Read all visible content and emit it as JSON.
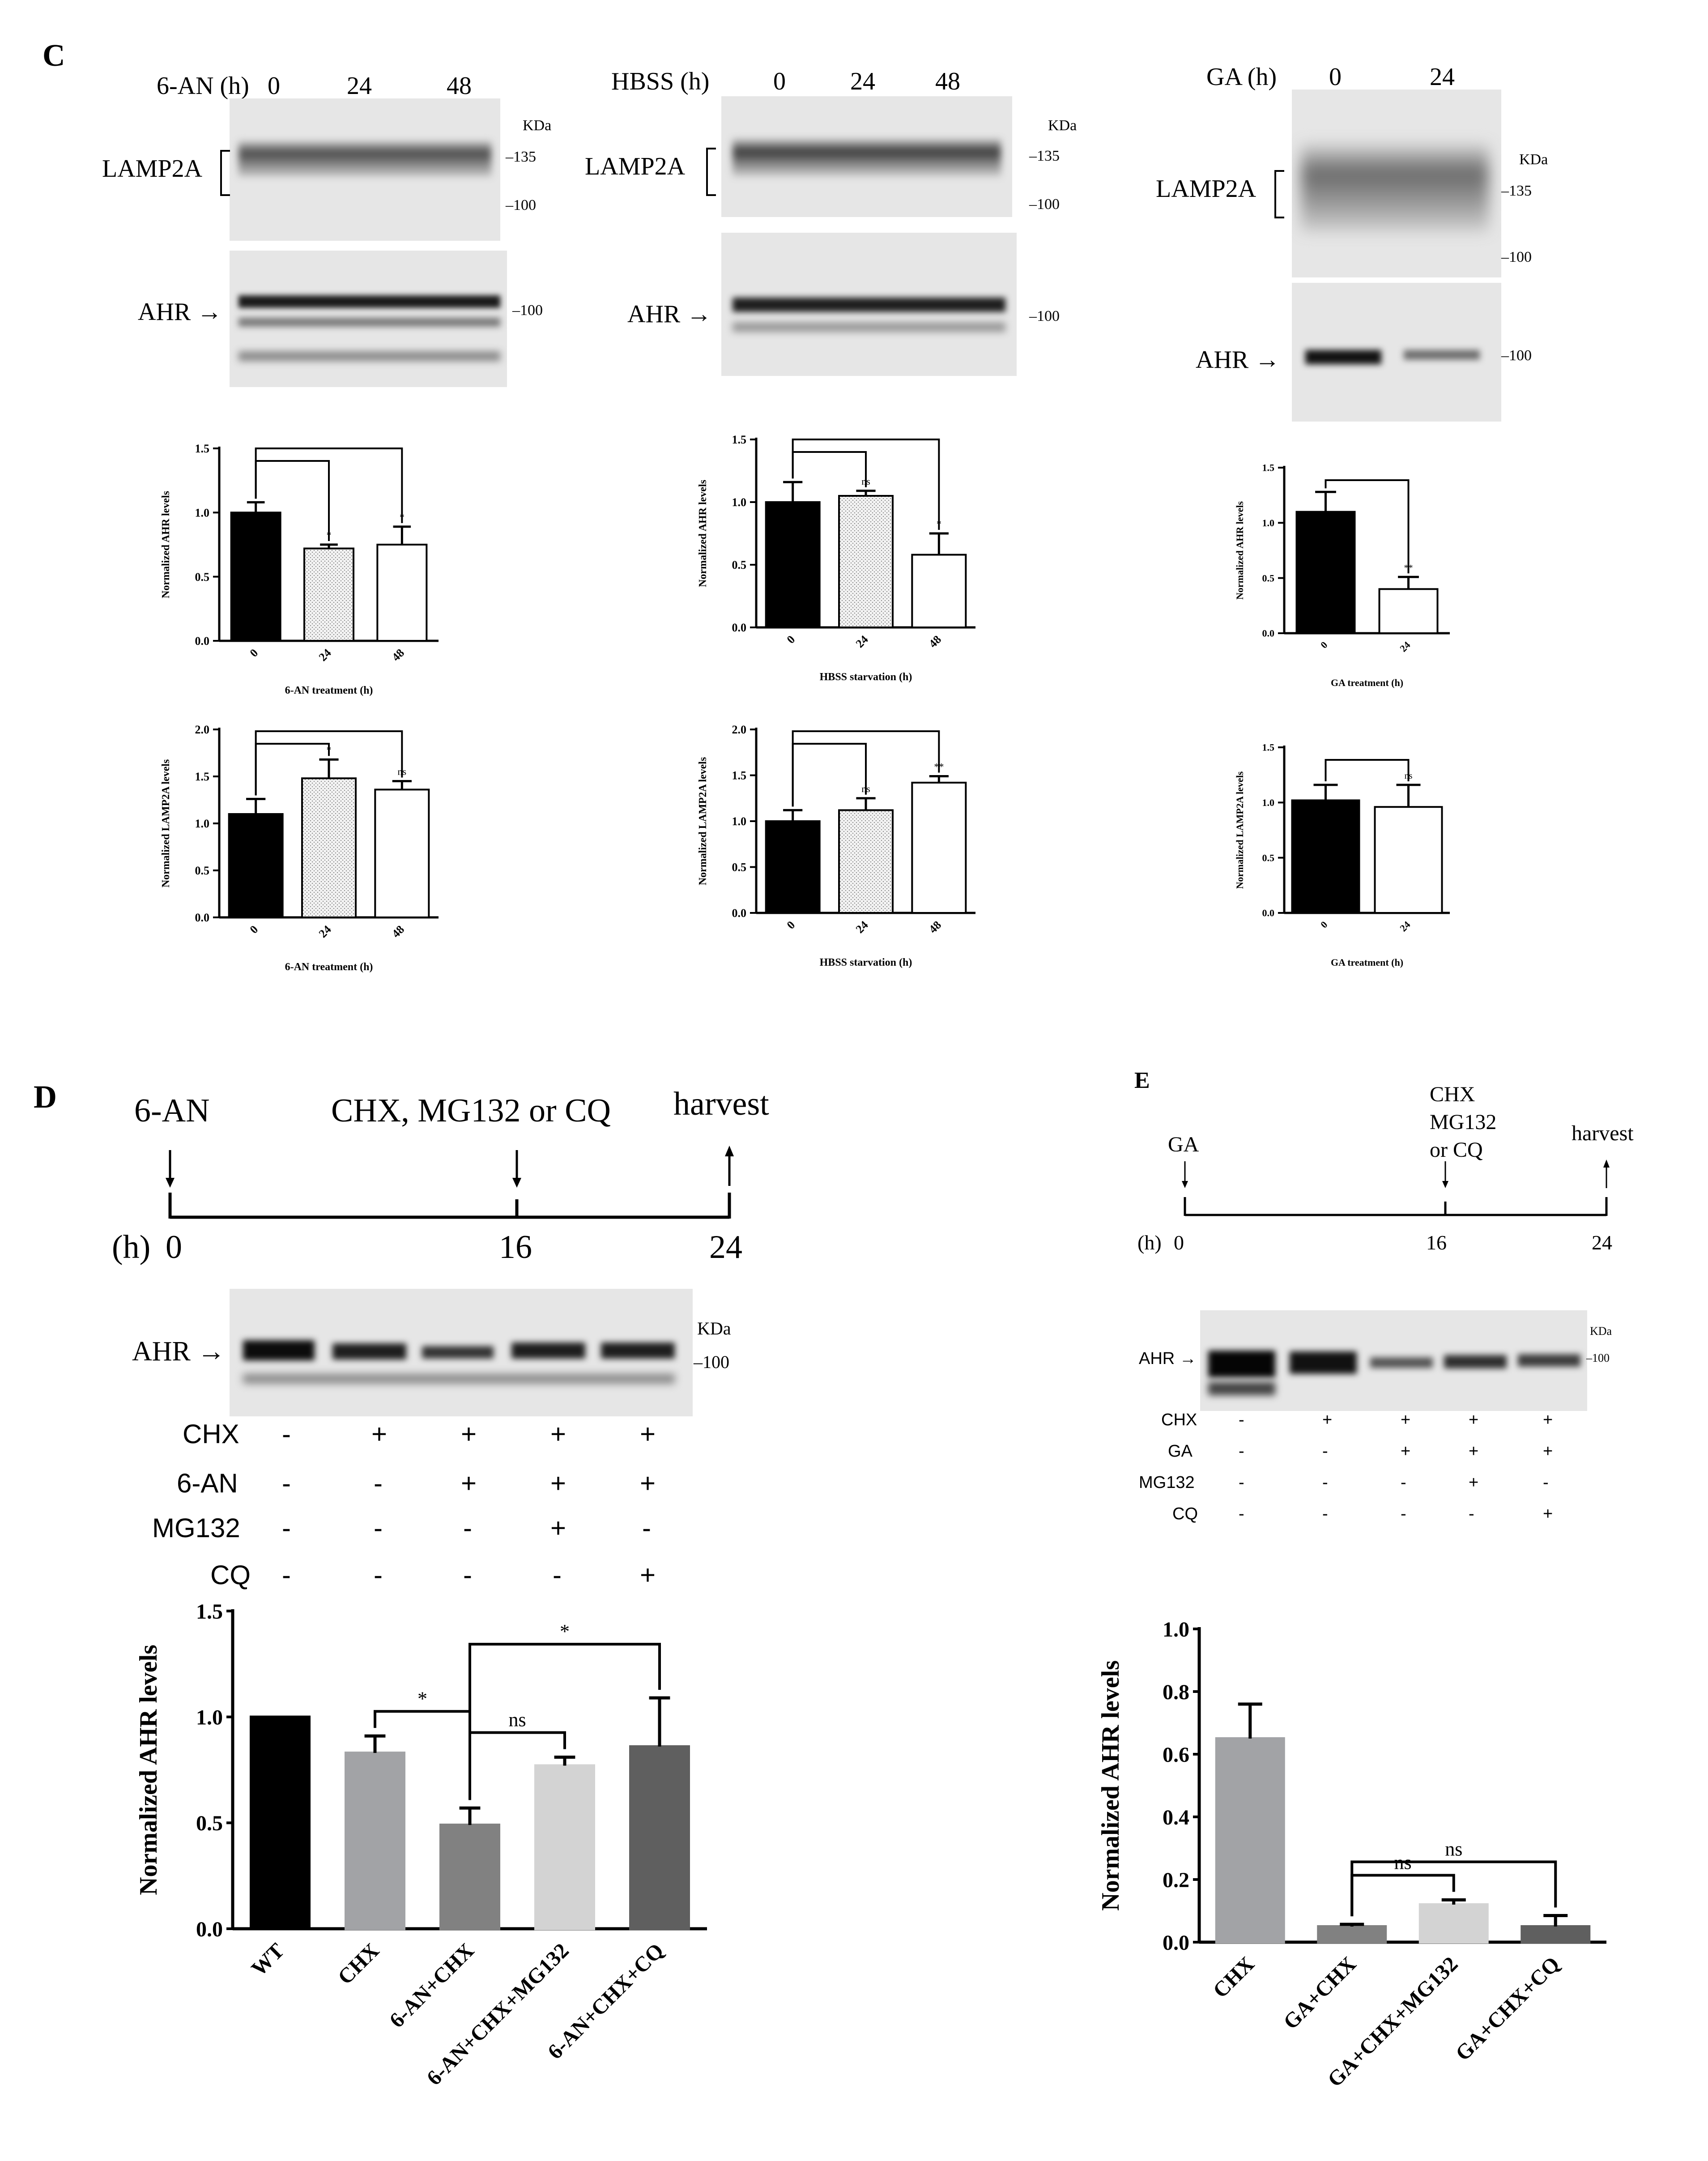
{
  "panel_c": {
    "letter": "C",
    "blots": [
      {
        "condition_label": "6-AN (h)",
        "lanes": [
          "0",
          "24",
          "48"
        ],
        "band_top": "LAMP2A",
        "band_bottom": "AHR",
        "kda_unit": "KDa",
        "markers_top": [
          "135",
          "100"
        ],
        "markers_bottom": [
          "100"
        ]
      },
      {
        "condition_label": "HBSS (h)",
        "lanes": [
          "0",
          "24",
          "48"
        ],
        "band_top": "LAMP2A",
        "band_bottom": "AHR",
        "kda_unit": "KDa",
        "markers_top": [
          "135",
          "100"
        ],
        "markers_bottom": [
          "100"
        ]
      },
      {
        "condition_label": "GA (h)",
        "lanes": [
          "0",
          "24"
        ],
        "band_top": "LAMP2A",
        "band_bottom": "AHR",
        "kda_unit": "KDa",
        "markers_top": [
          "135",
          "100"
        ],
        "markers_bottom": [
          "100"
        ]
      }
    ]
  },
  "panel_d": {
    "letter": "D",
    "timeline": {
      "start_label": "6-AN",
      "mid_label": "CHX, MG132 or CQ",
      "end_label": "harvest",
      "unit": "(h)",
      "ticks": [
        "0",
        "16",
        "24"
      ]
    },
    "blot": {
      "band": "AHR",
      "kda_unit": "KDa",
      "marker": "100"
    },
    "treatments": [
      {
        "name": "CHX",
        "values": [
          "-",
          "+",
          "+",
          "+",
          "+"
        ]
      },
      {
        "name": "6-AN",
        "values": [
          "-",
          "-",
          "+",
          "+",
          "+"
        ]
      },
      {
        "name": "MG132",
        "values": [
          "-",
          "-",
          "-",
          "+",
          "-"
        ]
      },
      {
        "name": "CQ",
        "values": [
          "-",
          "-",
          "-",
          "-",
          "+"
        ]
      }
    ]
  },
  "panel_e": {
    "letter": "E",
    "timeline": {
      "start_label": "GA",
      "mid_label_lines": [
        "CHX",
        "MG132",
        "or CQ"
      ],
      "end_label": "harvest",
      "unit": "(h)",
      "ticks": [
        "0",
        "16",
        "24"
      ]
    },
    "blot": {
      "band": "AHR",
      "kda_unit": "KDa",
      "marker": "100"
    },
    "treatments": [
      {
        "name": "CHX",
        "values": [
          "-",
          "+",
          "+",
          "+",
          "+"
        ]
      },
      {
        "name": "GA",
        "values": [
          "-",
          "-",
          "+",
          "+",
          "+"
        ]
      },
      {
        "name": "MG132",
        "values": [
          "-",
          "-",
          "-",
          "+",
          "-"
        ]
      },
      {
        "name": "CQ",
        "values": [
          "-",
          "-",
          "-",
          "-",
          "+"
        ]
      }
    ]
  },
  "colors": {
    "black": "#000000",
    "white": "#ffffff",
    "gray_light": "#d3d3d3",
    "gray_mid": "#a2a3a6",
    "gray_dark": "#818181",
    "gray_darker": "#5f5f5f",
    "dotted": "#c8c8c8"
  },
  "chart_data": [
    {
      "id": "c1",
      "type": "bar",
      "title": "",
      "categories": [
        "0",
        "24",
        "48"
      ],
      "values": [
        1.0,
        0.72,
        0.75
      ],
      "errors": [
        0.08,
        0.03,
        0.14
      ],
      "fills": [
        "black",
        "dotted",
        "white"
      ],
      "xlabel": "6-AN treatment (h)",
      "ylabel": "Normalized AHR levels",
      "ylim": [
        0,
        1.5
      ],
      "yticks": [
        "0.0",
        "0.5",
        "1.0",
        "1.5"
      ],
      "annotations": [
        {
          "from": 0,
          "to": 1,
          "text": "*"
        },
        {
          "from": 0,
          "to": 2,
          "text": "*"
        }
      ]
    },
    {
      "id": "c2",
      "type": "bar",
      "title": "",
      "categories": [
        "0",
        "24",
        "48"
      ],
      "values": [
        1.0,
        1.05,
        0.58
      ],
      "errors": [
        0.16,
        0.04,
        0.17
      ],
      "fills": [
        "black",
        "dotted",
        "white"
      ],
      "xlabel": "HBSS starvation (h)",
      "ylabel": "Normalized AHR levels",
      "ylim": [
        0,
        1.5
      ],
      "yticks": [
        "0.0",
        "0.5",
        "1.0",
        "1.5"
      ],
      "annotations": [
        {
          "from": 0,
          "to": 1,
          "text": "ns"
        },
        {
          "from": 0,
          "to": 2,
          "text": "*"
        }
      ]
    },
    {
      "id": "c3",
      "type": "bar",
      "title": "",
      "categories": [
        "0",
        "24"
      ],
      "values": [
        1.1,
        0.4
      ],
      "errors": [
        0.18,
        0.11
      ],
      "fills": [
        "black",
        "white"
      ],
      "xlabel": "GA treatment (h)",
      "ylabel": "Normalized AHR levels",
      "ylim": [
        0,
        1.5
      ],
      "yticks": [
        "0.0",
        "0.5",
        "1.0",
        "1.5"
      ],
      "annotations": [
        {
          "from": 0,
          "to": 1,
          "text": "**"
        }
      ]
    },
    {
      "id": "c4",
      "type": "bar",
      "title": "",
      "categories": [
        "0",
        "24",
        "48"
      ],
      "values": [
        1.1,
        1.48,
        1.36
      ],
      "errors": [
        0.16,
        0.2,
        0.09
      ],
      "fills": [
        "black",
        "dotted",
        "white"
      ],
      "xlabel": "6-AN treatment (h)",
      "ylabel": "Normalized LAMP2A levels",
      "ylim": [
        0,
        2.0
      ],
      "yticks": [
        "0.0",
        "0.5",
        "1.0",
        "1.5",
        "2.0"
      ],
      "annotations": [
        {
          "from": 0,
          "to": 1,
          "text": "*"
        },
        {
          "from": 0,
          "to": 2,
          "text": "ns"
        }
      ]
    },
    {
      "id": "c5",
      "type": "bar",
      "title": "",
      "categories": [
        "0",
        "24",
        "48"
      ],
      "values": [
        1.0,
        1.12,
        1.42
      ],
      "errors": [
        0.12,
        0.13,
        0.07
      ],
      "fills": [
        "black",
        "dotted",
        "white"
      ],
      "xlabel": "HBSS starvation (h)",
      "ylabel": "Normalized LAMP2A levels",
      "ylim": [
        0,
        2.0
      ],
      "yticks": [
        "0.0",
        "0.5",
        "1.0",
        "1.5",
        "2.0"
      ],
      "annotations": [
        {
          "from": 0,
          "to": 1,
          "text": "ns"
        },
        {
          "from": 0,
          "to": 2,
          "text": "**"
        }
      ]
    },
    {
      "id": "c6",
      "type": "bar",
      "title": "",
      "categories": [
        "0",
        "24"
      ],
      "values": [
        1.02,
        0.96
      ],
      "errors": [
        0.14,
        0.2
      ],
      "fills": [
        "black",
        "white"
      ],
      "xlabel": "GA treatment (h)",
      "ylabel": "Normalized LAMP2A levels",
      "ylim": [
        0,
        1.5
      ],
      "yticks": [
        "0.0",
        "0.5",
        "1.0",
        "1.5"
      ],
      "annotations": [
        {
          "from": 0,
          "to": 1,
          "text": "ns"
        }
      ]
    },
    {
      "id": "d",
      "type": "bar",
      "title": "",
      "categories": [
        "WT",
        "CHX",
        "6-AN+CHX",
        "6-AN+CHX+MG132",
        "6-AN+CHX+CQ"
      ],
      "values": [
        1.0,
        0.83,
        0.49,
        0.77,
        0.86
      ],
      "errors": [
        0.0,
        0.08,
        0.08,
        0.04,
        0.23
      ],
      "fills": [
        "black",
        "gray_mid",
        "gray_dark",
        "gray_light",
        "gray_darker"
      ],
      "xlabel": "",
      "ylabel": "Normalized AHR levels",
      "ylim": [
        0,
        1.5
      ],
      "yticks": [
        "0.0",
        "0.5",
        "1.0",
        "1.5"
      ],
      "annotations": [
        {
          "from": 1,
          "to": 2,
          "text": "*"
        },
        {
          "from": 2,
          "to": 3,
          "text": "ns"
        },
        {
          "from": 2,
          "to": 4,
          "text": "*"
        }
      ]
    },
    {
      "id": "e",
      "type": "bar",
      "title": "",
      "categories": [
        "CHX",
        "GA+CHX",
        "GA+CHX+MG132",
        "GA+CHX+CQ"
      ],
      "values": [
        0.65,
        0.05,
        0.12,
        0.05
      ],
      "errors": [
        0.11,
        0.007,
        0.015,
        0.035
      ],
      "fills": [
        "gray_mid",
        "gray_dark",
        "gray_light",
        "gray_darker"
      ],
      "xlabel": "",
      "ylabel": "Normalized AHR levels",
      "ylim": [
        0,
        1.0
      ],
      "yticks": [
        "0.0",
        "0.2",
        "0.4",
        "0.6",
        "0.8",
        "1.0"
      ],
      "annotations": [
        {
          "from": 1,
          "to": 2,
          "text": "ns"
        },
        {
          "from": 1,
          "to": 3,
          "text": "ns"
        }
      ]
    }
  ]
}
